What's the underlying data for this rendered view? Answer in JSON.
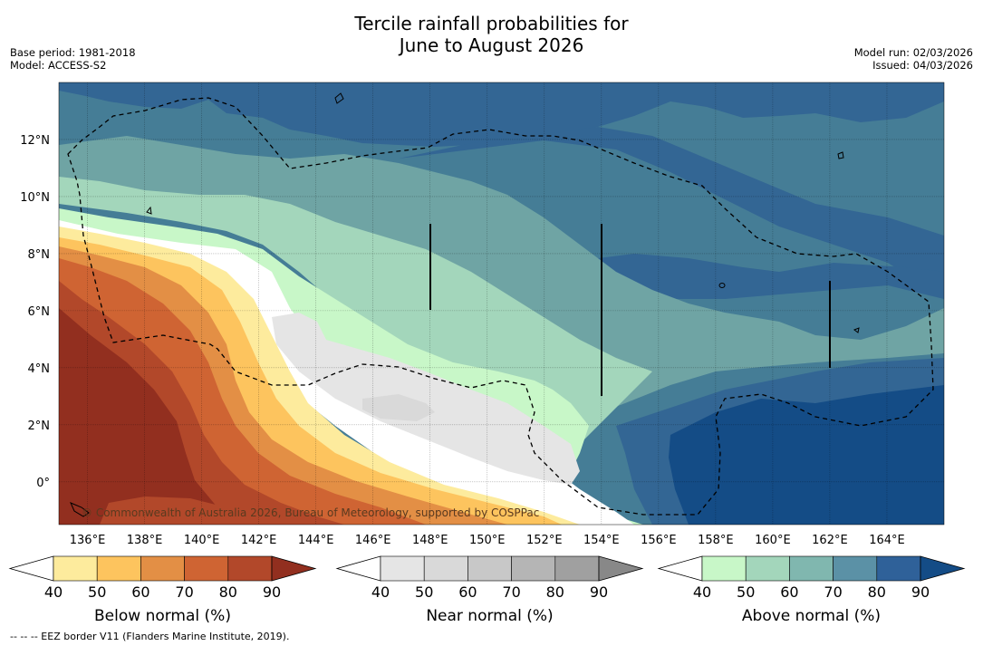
{
  "title": {
    "line1": "Tercile rainfall probabilities for",
    "line2": "June to August 2026"
  },
  "meta": {
    "base_period": "Base period: 1981-2018",
    "model": "Model: ACCESS-S2",
    "model_run": "Model run: 02/03/2026",
    "issued": "Issued: 04/03/2026"
  },
  "map": {
    "lon_range": [
      135,
      166
    ],
    "lat_range": [
      -1.5,
      14
    ],
    "lon_ticks": [
      "136°E",
      "138°E",
      "140°E",
      "142°E",
      "144°E",
      "146°E",
      "148°E",
      "150°E",
      "152°E",
      "154°E",
      "156°E",
      "158°E",
      "160°E",
      "162°E",
      "164°E"
    ],
    "lon_values": [
      136,
      138,
      140,
      142,
      144,
      146,
      148,
      150,
      152,
      154,
      156,
      158,
      160,
      162,
      164
    ],
    "lat_ticks": [
      "12°N",
      "10°N",
      "8°N",
      "6°N",
      "4°N",
      "2°N",
      "0°"
    ],
    "lat_values": [
      12,
      10,
      8,
      6,
      4,
      2,
      0
    ],
    "copyright": "© Commonwealth of Australia 2026, Bureau of Meteorology, supported by COSPPac"
  },
  "colorbars": [
    {
      "title": "Below normal (%)",
      "ticks": [
        "40",
        "50",
        "60",
        "70",
        "80",
        "90"
      ],
      "colors": [
        "#fdeb9d",
        "#fdc45e",
        "#e38f45",
        "#cf6433",
        "#b2482a",
        "#922f1f"
      ]
    },
    {
      "title": "Near normal (%)",
      "ticks": [
        "40",
        "50",
        "60",
        "70",
        "80",
        "90"
      ],
      "colors": [
        "#e5e5e5",
        "#d9d9d9",
        "#c8c8c8",
        "#b5b5b5",
        "#a0a0a0",
        "#888888"
      ]
    },
    {
      "title": "Above normal (%)",
      "ticks": [
        "40",
        "50",
        "60",
        "70",
        "80",
        "90"
      ],
      "colors": [
        "#c8f7c8",
        "#a3d6bb",
        "#80b7af",
        "#5b91a6",
        "#2f6199",
        "#144c86"
      ]
    }
  ],
  "footnote": "-- -- -- EEZ border V11 (Flanders Marine Institute, 2019)."
}
